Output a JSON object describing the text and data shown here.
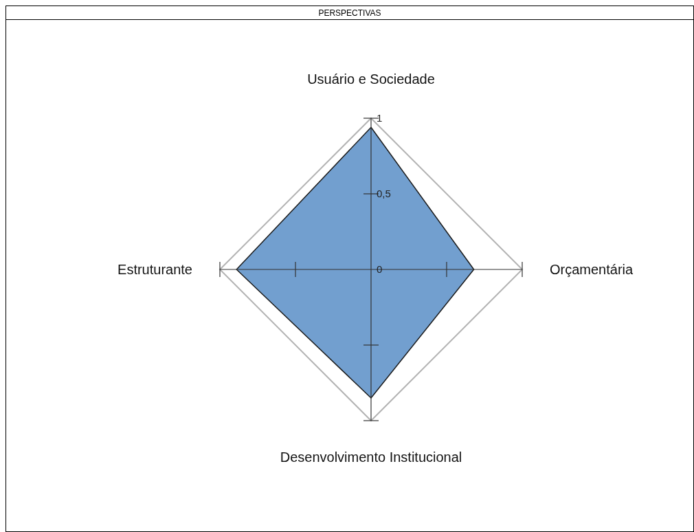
{
  "chart_data": {
    "type": "radar",
    "title": "PERSPECTIVAS",
    "categories": [
      "Usuário e Sociedade",
      "Orçamentária",
      "Desenvolvimento Institucional",
      "Estruturante"
    ],
    "series": [
      {
        "color": "#729fcf",
        "values": [
          0.94,
          0.68,
          0.85,
          0.89
        ]
      }
    ],
    "ylim": [
      0,
      1
    ],
    "yticks": [
      0,
      {
        "value": 0.5,
        "label": "0,5"
      },
      1
    ],
    "grid": true
  }
}
